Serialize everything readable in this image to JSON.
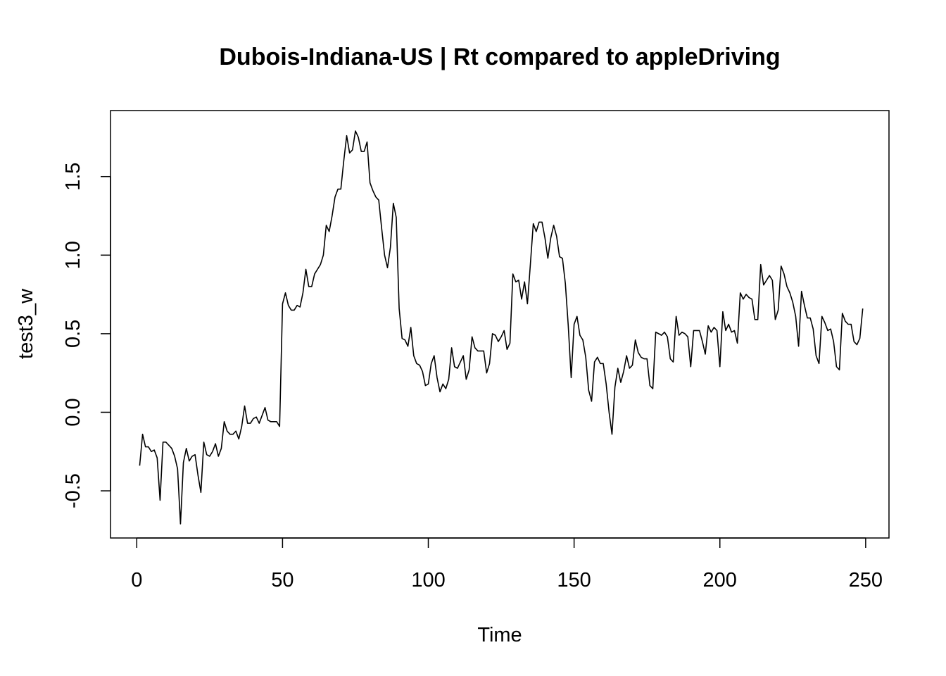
{
  "chart_data": {
    "type": "line",
    "title": "Dubois-Indiana-US | Rt compared to appleDriving",
    "xlabel": "Time",
    "ylabel": "test3_w",
    "xlim": [
      -9,
      258
    ],
    "ylim": [
      -0.8,
      1.92
    ],
    "x_ticks": [
      0,
      50,
      100,
      150,
      200,
      250
    ],
    "y_ticks": [
      -0.5,
      0.0,
      0.5,
      1.0,
      1.5
    ],
    "x_tick_labels": [
      "0",
      "50",
      "100",
      "150",
      "200",
      "250"
    ],
    "y_tick_labels": [
      "-0.5",
      "0.0",
      "0.5",
      "1.0",
      "1.5"
    ],
    "grid": false,
    "legend": "none",
    "line_color": "#000000",
    "series": [
      {
        "x_start": 1,
        "x_step": 1,
        "values": [
          -0.34,
          -0.14,
          -0.22,
          -0.22,
          -0.25,
          -0.24,
          -0.29,
          -0.56,
          -0.19,
          -0.19,
          -0.21,
          -0.23,
          -0.28,
          -0.36,
          -0.71,
          -0.32,
          -0.23,
          -0.31,
          -0.28,
          -0.27,
          -0.4,
          -0.51,
          -0.19,
          -0.27,
          -0.28,
          -0.25,
          -0.2,
          -0.28,
          -0.23,
          -0.06,
          -0.12,
          -0.14,
          -0.14,
          -0.12,
          -0.17,
          -0.09,
          0.04,
          -0.07,
          -0.07,
          -0.04,
          -0.03,
          -0.07,
          -0.02,
          0.03,
          -0.05,
          -0.06,
          -0.06,
          -0.06,
          -0.09,
          0.69,
          0.76,
          0.68,
          0.65,
          0.65,
          0.68,
          0.67,
          0.76,
          0.91,
          0.8,
          0.8,
          0.88,
          0.91,
          0.94,
          1.0,
          1.19,
          1.15,
          1.25,
          1.37,
          1.42,
          1.42,
          1.6,
          1.76,
          1.65,
          1.67,
          1.79,
          1.75,
          1.66,
          1.66,
          1.72,
          1.46,
          1.41,
          1.37,
          1.35,
          1.17,
          1.0,
          0.92,
          1.05,
          1.33,
          1.24,
          0.66,
          0.47,
          0.46,
          0.42,
          0.54,
          0.36,
          0.31,
          0.3,
          0.26,
          0.17,
          0.18,
          0.31,
          0.36,
          0.22,
          0.13,
          0.18,
          0.15,
          0.21,
          0.41,
          0.29,
          0.28,
          0.32,
          0.36,
          0.21,
          0.27,
          0.48,
          0.41,
          0.39,
          0.39,
          0.39,
          0.25,
          0.31,
          0.5,
          0.49,
          0.45,
          0.48,
          0.52,
          0.4,
          0.44,
          0.88,
          0.83,
          0.84,
          0.72,
          0.83,
          0.69,
          0.94,
          1.2,
          1.15,
          1.21,
          1.21,
          1.11,
          0.98,
          1.11,
          1.19,
          1.12,
          0.99,
          0.98,
          0.82,
          0.55,
          0.22,
          0.56,
          0.61,
          0.49,
          0.46,
          0.35,
          0.14,
          0.07,
          0.32,
          0.35,
          0.31,
          0.31,
          0.18,
          0.0,
          -0.14,
          0.16,
          0.28,
          0.19,
          0.26,
          0.36,
          0.28,
          0.3,
          0.46,
          0.38,
          0.35,
          0.34,
          0.34,
          0.17,
          0.15,
          0.51,
          0.5,
          0.49,
          0.51,
          0.48,
          0.34,
          0.32,
          0.61,
          0.49,
          0.51,
          0.5,
          0.48,
          0.29,
          0.52,
          0.52,
          0.52,
          0.45,
          0.37,
          0.55,
          0.51,
          0.54,
          0.52,
          0.29,
          0.64,
          0.52,
          0.56,
          0.51,
          0.52,
          0.44,
          0.76,
          0.72,
          0.75,
          0.73,
          0.72,
          0.59,
          0.59,
          0.94,
          0.81,
          0.84,
          0.87,
          0.84,
          0.59,
          0.65,
          0.93,
          0.88,
          0.8,
          0.76,
          0.7,
          0.61,
          0.42,
          0.77,
          0.68,
          0.6,
          0.6,
          0.53,
          0.36,
          0.31,
          0.61,
          0.57,
          0.52,
          0.53,
          0.45,
          0.29,
          0.27,
          0.63,
          0.58,
          0.56,
          0.56,
          0.45,
          0.43,
          0.47,
          0.66
        ]
      }
    ]
  }
}
